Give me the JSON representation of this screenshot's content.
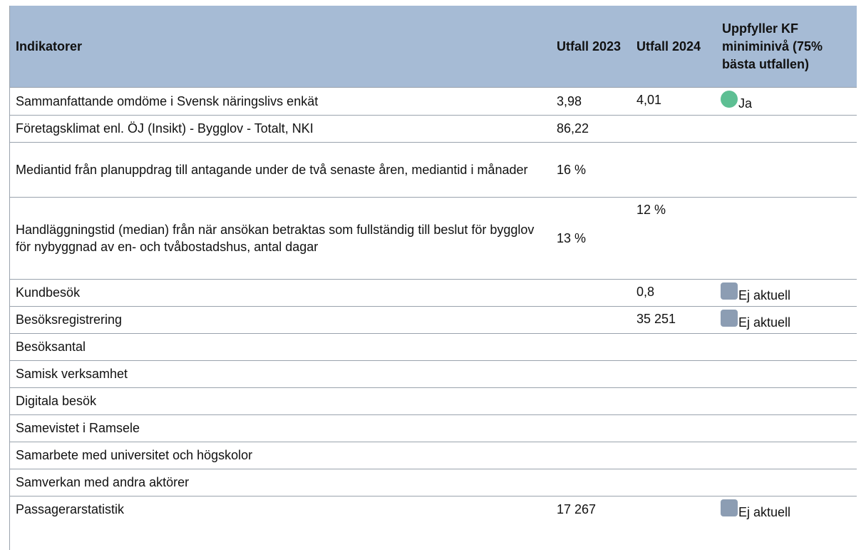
{
  "table": {
    "header": [
      "Indikatorer",
      "Utfall 2023",
      "Utfall 2024",
      "Uppfyller KF miniminivå (75% bästa utfallen)"
    ],
    "header_color": "#a6bbd5",
    "rows": [
      {
        "cells": [
          "Sammanfattande omdöme i Svensk näringslivs enkät",
          "3,98",
          "4,01"
        ],
        "status": "Ja",
        "indicator": {
          "shape": "circle",
          "color": "#5dbf93"
        }
      },
      {
        "cells": [
          "Företagsklimat enl. ÖJ (Insikt) - Bygglov - Totalt, NKI",
          "86,22",
          ""
        ]
      },
      {
        "cells": [
          "Mediantid från planuppdrag till antagande under de två senaste åren, mediantid i månader",
          "16 %",
          ""
        ]
      },
      {
        "cells": [
          "Handläggningstid (median) från när ansökan betraktas som fullständig till beslut för bygglov för nybyggnad av en- och tvåbostadshus, antal dagar",
          "13 %",
          "12 %"
        ]
      },
      {
        "cells": [
          "Kundbesök",
          "",
          "0,8"
        ],
        "status": "Ej aktuell",
        "indicator": {
          "shape": "square",
          "color": "#8c9db3"
        }
      },
      {
        "cells": [
          "Besöksregistrering",
          "",
          "35 251"
        ],
        "status": "Ej aktuell",
        "indicator": {
          "shape": "square",
          "color": "#8c9db3"
        }
      },
      {
        "cells": [
          "Besöksantal",
          "",
          ""
        ]
      },
      {
        "cells": [
          "Samisk verksamhet",
          "",
          ""
        ]
      },
      {
        "cells": [
          "Digitala besök",
          "",
          ""
        ]
      },
      {
        "cells": [
          "Samevistet i Ramsele",
          "",
          ""
        ]
      },
      {
        "cells": [
          "Samarbete med universitet och högskolor",
          "",
          ""
        ]
      },
      {
        "cells": [
          "Samverkan med andra aktörer",
          "",
          ""
        ]
      },
      {
        "cells": [
          "Passagerarstatistik",
          "17 267",
          ""
        ],
        "status": "Ej aktuell",
        "indicator": {
          "shape": "square",
          "color": "#8c9db3"
        }
      }
    ]
  }
}
